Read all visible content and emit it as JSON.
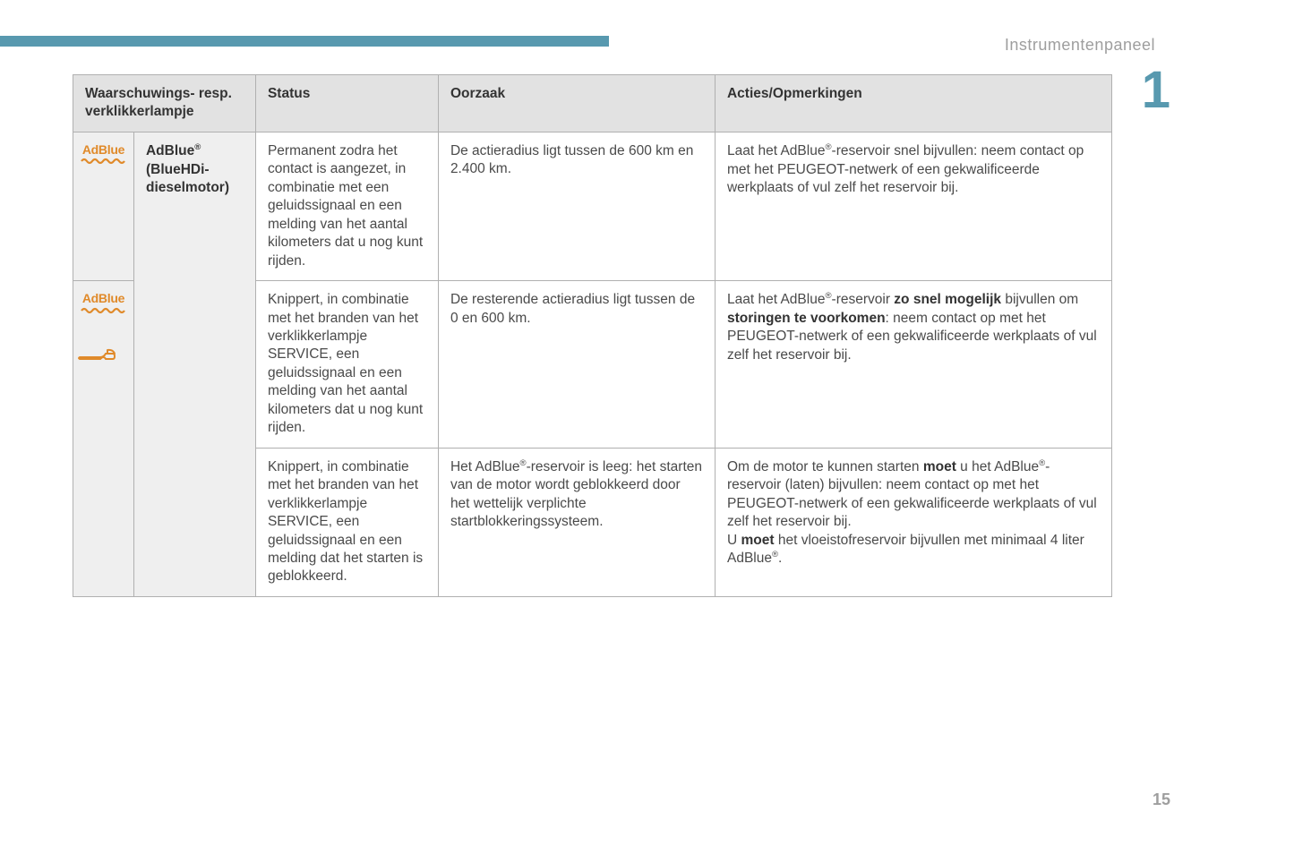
{
  "header": {
    "section_title": "Instrumentenpaneel",
    "chapter_number": "1",
    "page_number": "15"
  },
  "colors": {
    "accent": "#5899af",
    "icon_orange": "#e08a2a",
    "text": "#4a4a4a",
    "grey_bg": "#e2e2e2",
    "light_grey": "#efefef",
    "muted": "#9e9e9e"
  },
  "table": {
    "headers": {
      "col1": "Waarschuwings- resp. verklikkerlampje",
      "col2": "Status",
      "col3": "Oorzaak",
      "col4": "Acties/Opmerkingen"
    },
    "name_cell": {
      "line1_pre": "AdBlue",
      "line1_sup": "®",
      "line2": "(BlueHDi-dieselmotor)"
    },
    "rows": [
      {
        "icons": [
          "adblue"
        ],
        "status": "Permanent zodra het contact is aangezet, in combinatie met een geluidssignaal en een melding van het aantal kilometers dat u nog kunt rijden.",
        "cause": "De actieradius ligt tussen de 600 km en 2.400 km.",
        "action_html": "Laat het AdBlue<sup>®</sup>-reservoir snel bijvullen: neem contact op met het PEUGEOT-netwerk of een gekwalificeerde werkplaats of vul zelf het reservoir bij."
      },
      {
        "icons": [
          "adblue",
          "wrench"
        ],
        "status": "Knippert, in combinatie met het branden van het verklikkerlampje SERVICE, een geluidssignaal en een melding van het aantal kilometers dat u nog kunt rijden.",
        "cause": "De resterende actieradius ligt tussen de 0 en 600 km.",
        "action_html": "Laat het AdBlue<sup>®</sup>-reservoir <b>zo snel mogelijk</b> bijvullen om <b>storingen te voorkomen</b>: neem contact op met het PEUGEOT-netwerk of een gekwalificeerde werkplaats of vul zelf het reservoir bij."
      },
      {
        "icons": [],
        "status": "Knippert, in combinatie met het branden van het verklikkerlampje SERVICE, een geluidssignaal en een melding dat het starten is geblokkeerd.",
        "cause_html": "Het AdBlue<sup>®</sup>-reservoir is leeg: het starten van de motor wordt geblokkeerd door het wettelijk verplichte startblokkeringssysteem.",
        "action_html": "Om de motor te kunnen starten <b>moet</b> u het AdBlue<sup>®</sup>-reservoir (laten) bijvullen: neem contact op met het PEUGEOT-netwerk of een gekwalificeerde werkplaats of vul zelf het reservoir bij.<br>U <b>moet</b> het vloeistofreservoir bijvullen met minimaal 4 liter AdBlue<sup>®</sup>."
      }
    ]
  }
}
